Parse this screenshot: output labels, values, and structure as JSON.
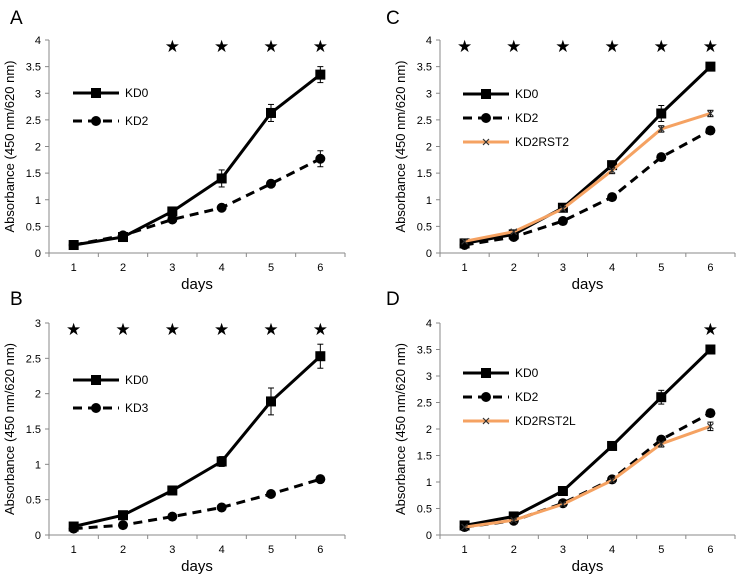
{
  "chart_data": [
    {
      "panel": "A",
      "type": "line",
      "xlabel": "days",
      "ylabel": "Absorbance (450 nm/620 nm)",
      "x": [
        1,
        2,
        3,
        4,
        5,
        6
      ],
      "ylim": [
        0,
        4
      ],
      "yticks": [
        "0",
        "0.5",
        "1",
        "1.5",
        "2",
        "2.5",
        "3",
        "3.5",
        "4"
      ],
      "legend_position": "top-left",
      "significance_days": [
        3,
        4,
        5,
        6
      ],
      "series": [
        {
          "name": "KD0",
          "values": [
            0.15,
            0.3,
            0.78,
            1.4,
            2.63,
            3.35
          ],
          "errors": [
            0.05,
            0.05,
            0.06,
            0.16,
            0.16,
            0.15
          ],
          "color": "#000000",
          "dash": "solid",
          "marker": "square"
        },
        {
          "name": "KD2",
          "values": [
            0.15,
            0.33,
            0.63,
            0.85,
            1.3,
            1.77
          ],
          "errors": [
            0.04,
            0.04,
            0.05,
            0.05,
            0.05,
            0.15
          ],
          "color": "#000000",
          "dash": "dashed",
          "marker": "circle"
        }
      ]
    },
    {
      "panel": "B",
      "type": "line",
      "xlabel": "days",
      "ylabel": "Absorbance (450 nm/620 nm)",
      "x": [
        1,
        2,
        3,
        4,
        5,
        6
      ],
      "ylim": [
        0,
        3
      ],
      "yticks": [
        "0",
        "0.5",
        "1",
        "1.5",
        "2",
        "2.5",
        "3"
      ],
      "legend_position": "top-left",
      "significance_days": [
        1,
        2,
        3,
        4,
        5,
        6
      ],
      "series": [
        {
          "name": "KD0",
          "values": [
            0.12,
            0.28,
            0.63,
            1.04,
            1.89,
            2.53
          ],
          "errors": [
            0.03,
            0.04,
            0.04,
            0.07,
            0.19,
            0.17
          ],
          "color": "#000000",
          "dash": "solid",
          "marker": "square"
        },
        {
          "name": "KD3",
          "values": [
            0.09,
            0.14,
            0.26,
            0.39,
            0.58,
            0.79
          ],
          "errors": [
            0.02,
            0.02,
            0.02,
            0.03,
            0.03,
            0.04
          ],
          "color": "#000000",
          "dash": "dashed",
          "marker": "circle"
        }
      ]
    },
    {
      "panel": "C",
      "type": "line",
      "xlabel": "days",
      "ylabel": "Absorbance (450 nm/620 nm)",
      "x": [
        1,
        2,
        3,
        4,
        5,
        6
      ],
      "ylim": [
        0,
        4
      ],
      "yticks": [
        "0",
        "0.5",
        "1",
        "1.5",
        "2",
        "2.5",
        "3",
        "3.5",
        "4"
      ],
      "legend_position": "top-left",
      "significance_days": [
        1,
        2,
        3,
        4,
        5,
        6
      ],
      "series": [
        {
          "name": "KD0",
          "values": [
            0.18,
            0.35,
            0.85,
            1.65,
            2.62,
            3.5
          ],
          "errors": [
            0.03,
            0.03,
            0.04,
            0.07,
            0.15,
            0.05
          ],
          "color": "#000000",
          "dash": "solid",
          "marker": "square"
        },
        {
          "name": "KD2",
          "values": [
            0.15,
            0.3,
            0.6,
            1.05,
            1.8,
            2.3
          ],
          "errors": [
            0.02,
            0.02,
            0.03,
            0.03,
            0.05,
            0.07
          ],
          "color": "#000000",
          "dash": "dashed",
          "marker": "circle"
        },
        {
          "name": "KD2RST2",
          "values": [
            0.22,
            0.4,
            0.83,
            1.55,
            2.33,
            2.62
          ],
          "errors": [
            0.03,
            0.03,
            0.04,
            0.06,
            0.06,
            0.06
          ],
          "color": "#f5a262",
          "dash": "solid",
          "marker": "cross"
        }
      ]
    },
    {
      "panel": "D",
      "type": "line",
      "xlabel": "days",
      "ylabel": "Absorbance (450 nm/620 nm)",
      "x": [
        1,
        2,
        3,
        4,
        5,
        6
      ],
      "ylim": [
        0,
        4
      ],
      "yticks": [
        "0",
        "0.5",
        "1",
        "1.5",
        "2",
        "2.5",
        "3",
        "3.5",
        "4"
      ],
      "legend_position": "top-left",
      "significance_days": [
        6
      ],
      "series": [
        {
          "name": "KD0",
          "values": [
            0.18,
            0.35,
            0.83,
            1.68,
            2.6,
            3.5
          ],
          "errors": [
            0.03,
            0.03,
            0.04,
            0.05,
            0.13,
            0.05
          ],
          "color": "#000000",
          "dash": "solid",
          "marker": "square"
        },
        {
          "name": "KD2",
          "values": [
            0.15,
            0.27,
            0.6,
            1.05,
            1.8,
            2.3
          ],
          "errors": [
            0.02,
            0.02,
            0.03,
            0.04,
            0.05,
            0.07
          ],
          "color": "#000000",
          "dash": "dashed",
          "marker": "circle"
        },
        {
          "name": "KD2RST2L",
          "values": [
            0.15,
            0.28,
            0.58,
            1.03,
            1.72,
            2.05
          ],
          "errors": [
            0.02,
            0.02,
            0.03,
            0.05,
            0.06,
            0.08
          ],
          "color": "#f5a262",
          "dash": "solid",
          "marker": "cross"
        }
      ]
    }
  ]
}
